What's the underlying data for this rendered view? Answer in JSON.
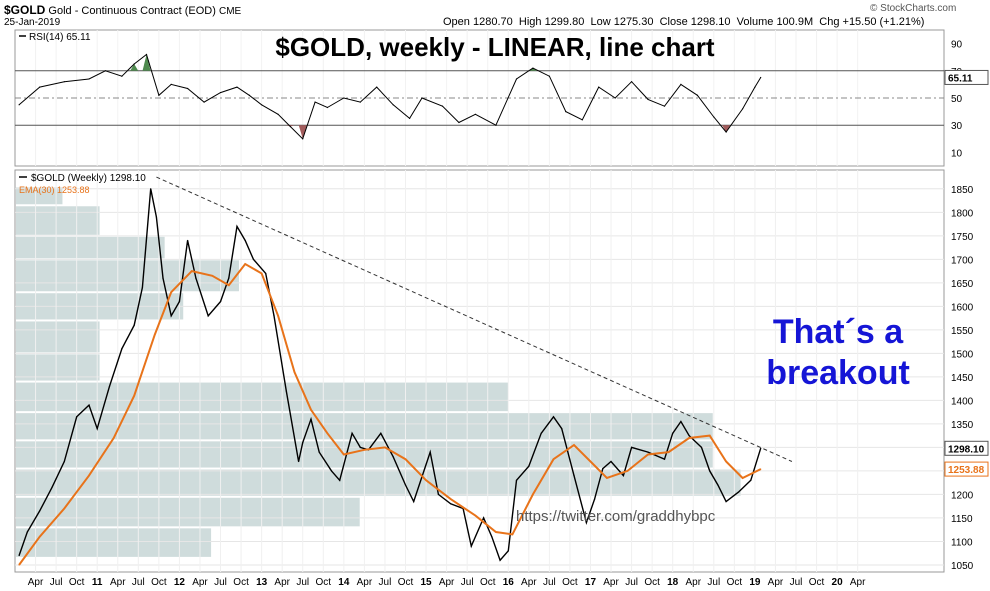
{
  "header": {
    "symbol": "$GOLD",
    "name": "Gold - Continuous Contract (EOD)",
    "exchange": "CME",
    "date": "25-Jan-2019",
    "open_label": "Open",
    "open": "1280.70",
    "high_label": "High",
    "high": "1299.80",
    "low_label": "Low",
    "low": "1275.30",
    "close_label": "Close",
    "close": "1298.10",
    "volume_label": "Volume",
    "volume": "100.9M",
    "chg_label": "Chg",
    "chg": "+15.50 (+1.21%)",
    "watermark": "© StockCharts.com"
  },
  "annotations": {
    "title": "$GOLD, weekly - LINEAR, line chart",
    "callout_line1": "That´s a",
    "callout_line2": "breakout",
    "twitter": "https://twitter.com/graddhybpc"
  },
  "chart_data": [
    {
      "type": "line",
      "panel": "RSI",
      "legend": "RSI(14) 65.11",
      "ylim": [
        0,
        100
      ],
      "y_ticks": [
        "90",
        "70",
        "50",
        "30",
        "10"
      ],
      "levels": [
        70,
        50,
        30
      ],
      "last_label": "65.11",
      "series": [
        {
          "name": "RSI(14)",
          "x": [
            2010.05,
            2010.3,
            2010.6,
            2010.9,
            2011.1,
            2011.3,
            2011.45,
            2011.6,
            2011.75,
            2011.9,
            2012.1,
            2012.3,
            2012.5,
            2012.7,
            2012.85,
            2013.0,
            2013.2,
            2013.35,
            2013.5,
            2013.65,
            2013.8,
            2014.0,
            2014.2,
            2014.4,
            2014.6,
            2014.8,
            2014.95,
            2015.2,
            2015.4,
            2015.6,
            2015.85,
            2016.1,
            2016.3,
            2016.5,
            2016.7,
            2016.9,
            2017.1,
            2017.3,
            2017.5,
            2017.7,
            2017.9,
            2018.1,
            2018.3,
            2018.5,
            2018.65,
            2018.85,
            2019.0,
            2019.07
          ],
          "values": [
            45,
            58,
            62,
            64,
            70,
            66,
            75,
            82,
            52,
            60,
            57,
            47,
            54,
            58,
            52,
            45,
            38,
            29,
            20,
            47,
            43,
            50,
            47,
            58,
            45,
            35,
            50,
            44,
            32,
            38,
            30,
            64,
            72,
            66,
            40,
            34,
            58,
            50,
            62,
            49,
            44,
            60,
            52,
            36,
            25,
            42,
            58,
            65.11
          ]
        }
      ]
    },
    {
      "type": "line",
      "panel": "price",
      "legend": [
        "$GOLD (Weekly) 1298.10",
        "EMA(30) 1253.88"
      ],
      "ylim": [
        1035,
        1890
      ],
      "xlim": [
        2010.0,
        2021.3
      ],
      "y_ticks": [
        "1850",
        "1800",
        "1750",
        "1700",
        "1650",
        "1600",
        "1550",
        "1500",
        "1450",
        "1400",
        "1350",
        "1300",
        "1250",
        "1200",
        "1150",
        "1100",
        "1050"
      ],
      "x_ticks": [
        "Apr",
        "Jul",
        "Oct",
        "11",
        "Apr",
        "Jul",
        "Oct",
        "12",
        "Apr",
        "Jul",
        "Oct",
        "13",
        "Apr",
        "Jul",
        "Oct",
        "14",
        "Apr",
        "Jul",
        "Oct",
        "15",
        "Apr",
        "Jul",
        "Oct",
        "16",
        "Apr",
        "Jul",
        "Oct",
        "17",
        "Apr",
        "Jul",
        "Oct",
        "18",
        "Apr",
        "Jul",
        "Oct",
        "19",
        "Apr",
        "Jul",
        "Oct",
        "20",
        "Apr"
      ],
      "last_labels": [
        "1298.10",
        "1253.88"
      ],
      "series": [
        {
          "name": "$GOLD (Weekly)",
          "x": [
            2010.05,
            2010.15,
            2010.3,
            2010.45,
            2010.6,
            2010.75,
            2010.9,
            2011.0,
            2011.15,
            2011.3,
            2011.45,
            2011.55,
            2011.65,
            2011.72,
            2011.8,
            2011.9,
            2012.0,
            2012.1,
            2012.2,
            2012.35,
            2012.5,
            2012.6,
            2012.7,
            2012.8,
            2012.9,
            2013.05,
            2013.15,
            2013.3,
            2013.45,
            2013.5,
            2013.6,
            2013.7,
            2013.85,
            2013.95,
            2014.1,
            2014.2,
            2014.3,
            2014.45,
            2014.6,
            2014.75,
            2014.85,
            2015.05,
            2015.15,
            2015.3,
            2015.45,
            2015.55,
            2015.7,
            2015.8,
            2015.9,
            2016.0,
            2016.1,
            2016.25,
            2016.4,
            2016.55,
            2016.65,
            2016.8,
            2016.95,
            2017.05,
            2017.15,
            2017.25,
            2017.4,
            2017.5,
            2017.7,
            2017.9,
            2018.0,
            2018.1,
            2018.2,
            2018.35,
            2018.45,
            2018.55,
            2018.65,
            2018.8,
            2018.95,
            2019.07
          ],
          "values": [
            1070,
            1120,
            1165,
            1215,
            1270,
            1365,
            1390,
            1340,
            1430,
            1510,
            1560,
            1640,
            1850,
            1790,
            1660,
            1580,
            1610,
            1740,
            1660,
            1580,
            1610,
            1660,
            1770,
            1740,
            1700,
            1670,
            1580,
            1420,
            1270,
            1310,
            1360,
            1290,
            1250,
            1230,
            1330,
            1300,
            1295,
            1330,
            1280,
            1220,
            1185,
            1290,
            1200,
            1180,
            1170,
            1090,
            1150,
            1110,
            1060,
            1080,
            1230,
            1260,
            1330,
            1365,
            1340,
            1240,
            1140,
            1190,
            1255,
            1270,
            1240,
            1300,
            1290,
            1275,
            1330,
            1355,
            1325,
            1300,
            1250,
            1220,
            1185,
            1205,
            1230,
            1298.1
          ]
        },
        {
          "name": "EMA(30)",
          "x": [
            2010.05,
            2010.3,
            2010.6,
            2010.9,
            2011.2,
            2011.45,
            2011.7,
            2011.9,
            2012.15,
            2012.4,
            2012.6,
            2012.8,
            2013.0,
            2013.2,
            2013.4,
            2013.6,
            2013.8,
            2014.0,
            2014.25,
            2014.5,
            2014.75,
            2015.0,
            2015.3,
            2015.6,
            2015.85,
            2016.05,
            2016.3,
            2016.55,
            2016.8,
            2017.0,
            2017.2,
            2017.45,
            2017.7,
            2017.95,
            2018.2,
            2018.45,
            2018.65,
            2018.85,
            2019.07
          ],
          "values": [
            1050,
            1110,
            1170,
            1240,
            1320,
            1410,
            1540,
            1630,
            1675,
            1665,
            1645,
            1690,
            1670,
            1580,
            1460,
            1380,
            1330,
            1285,
            1295,
            1300,
            1275,
            1230,
            1190,
            1155,
            1120,
            1115,
            1200,
            1275,
            1305,
            1270,
            1235,
            1250,
            1285,
            1290,
            1320,
            1325,
            1270,
            1235,
            1253.88
          ]
        }
      ],
      "trendline": {
        "x": [
          2011.72,
          2019.45
        ],
        "values": [
          1875,
          1270
        ],
        "style": "dashed"
      },
      "volume_by_price": {
        "price_bands": [
          [
            1815,
            1855
          ],
          [
            1750,
            1815
          ],
          [
            1700,
            1750
          ],
          [
            1630,
            1700
          ],
          [
            1570,
            1630
          ],
          [
            1500,
            1570
          ],
          [
            1440,
            1500
          ],
          [
            1375,
            1440
          ],
          [
            1315,
            1375
          ],
          [
            1255,
            1315
          ],
          [
            1195,
            1255
          ],
          [
            1130,
            1195
          ],
          [
            1065,
            1130
          ]
        ],
        "relative_volume": [
          5,
          9,
          16,
          24,
          18,
          9,
          9,
          53,
          75,
          75,
          78,
          37,
          21
        ]
      }
    }
  ],
  "colors": {
    "price_line": "#000000",
    "ema_line": "#e8731a",
    "volume_bars": "#cfdcdc",
    "overbought_fill": "#4e8a4e",
    "oversold_fill": "#a35c5c",
    "callout_text": "#1515d6"
  }
}
